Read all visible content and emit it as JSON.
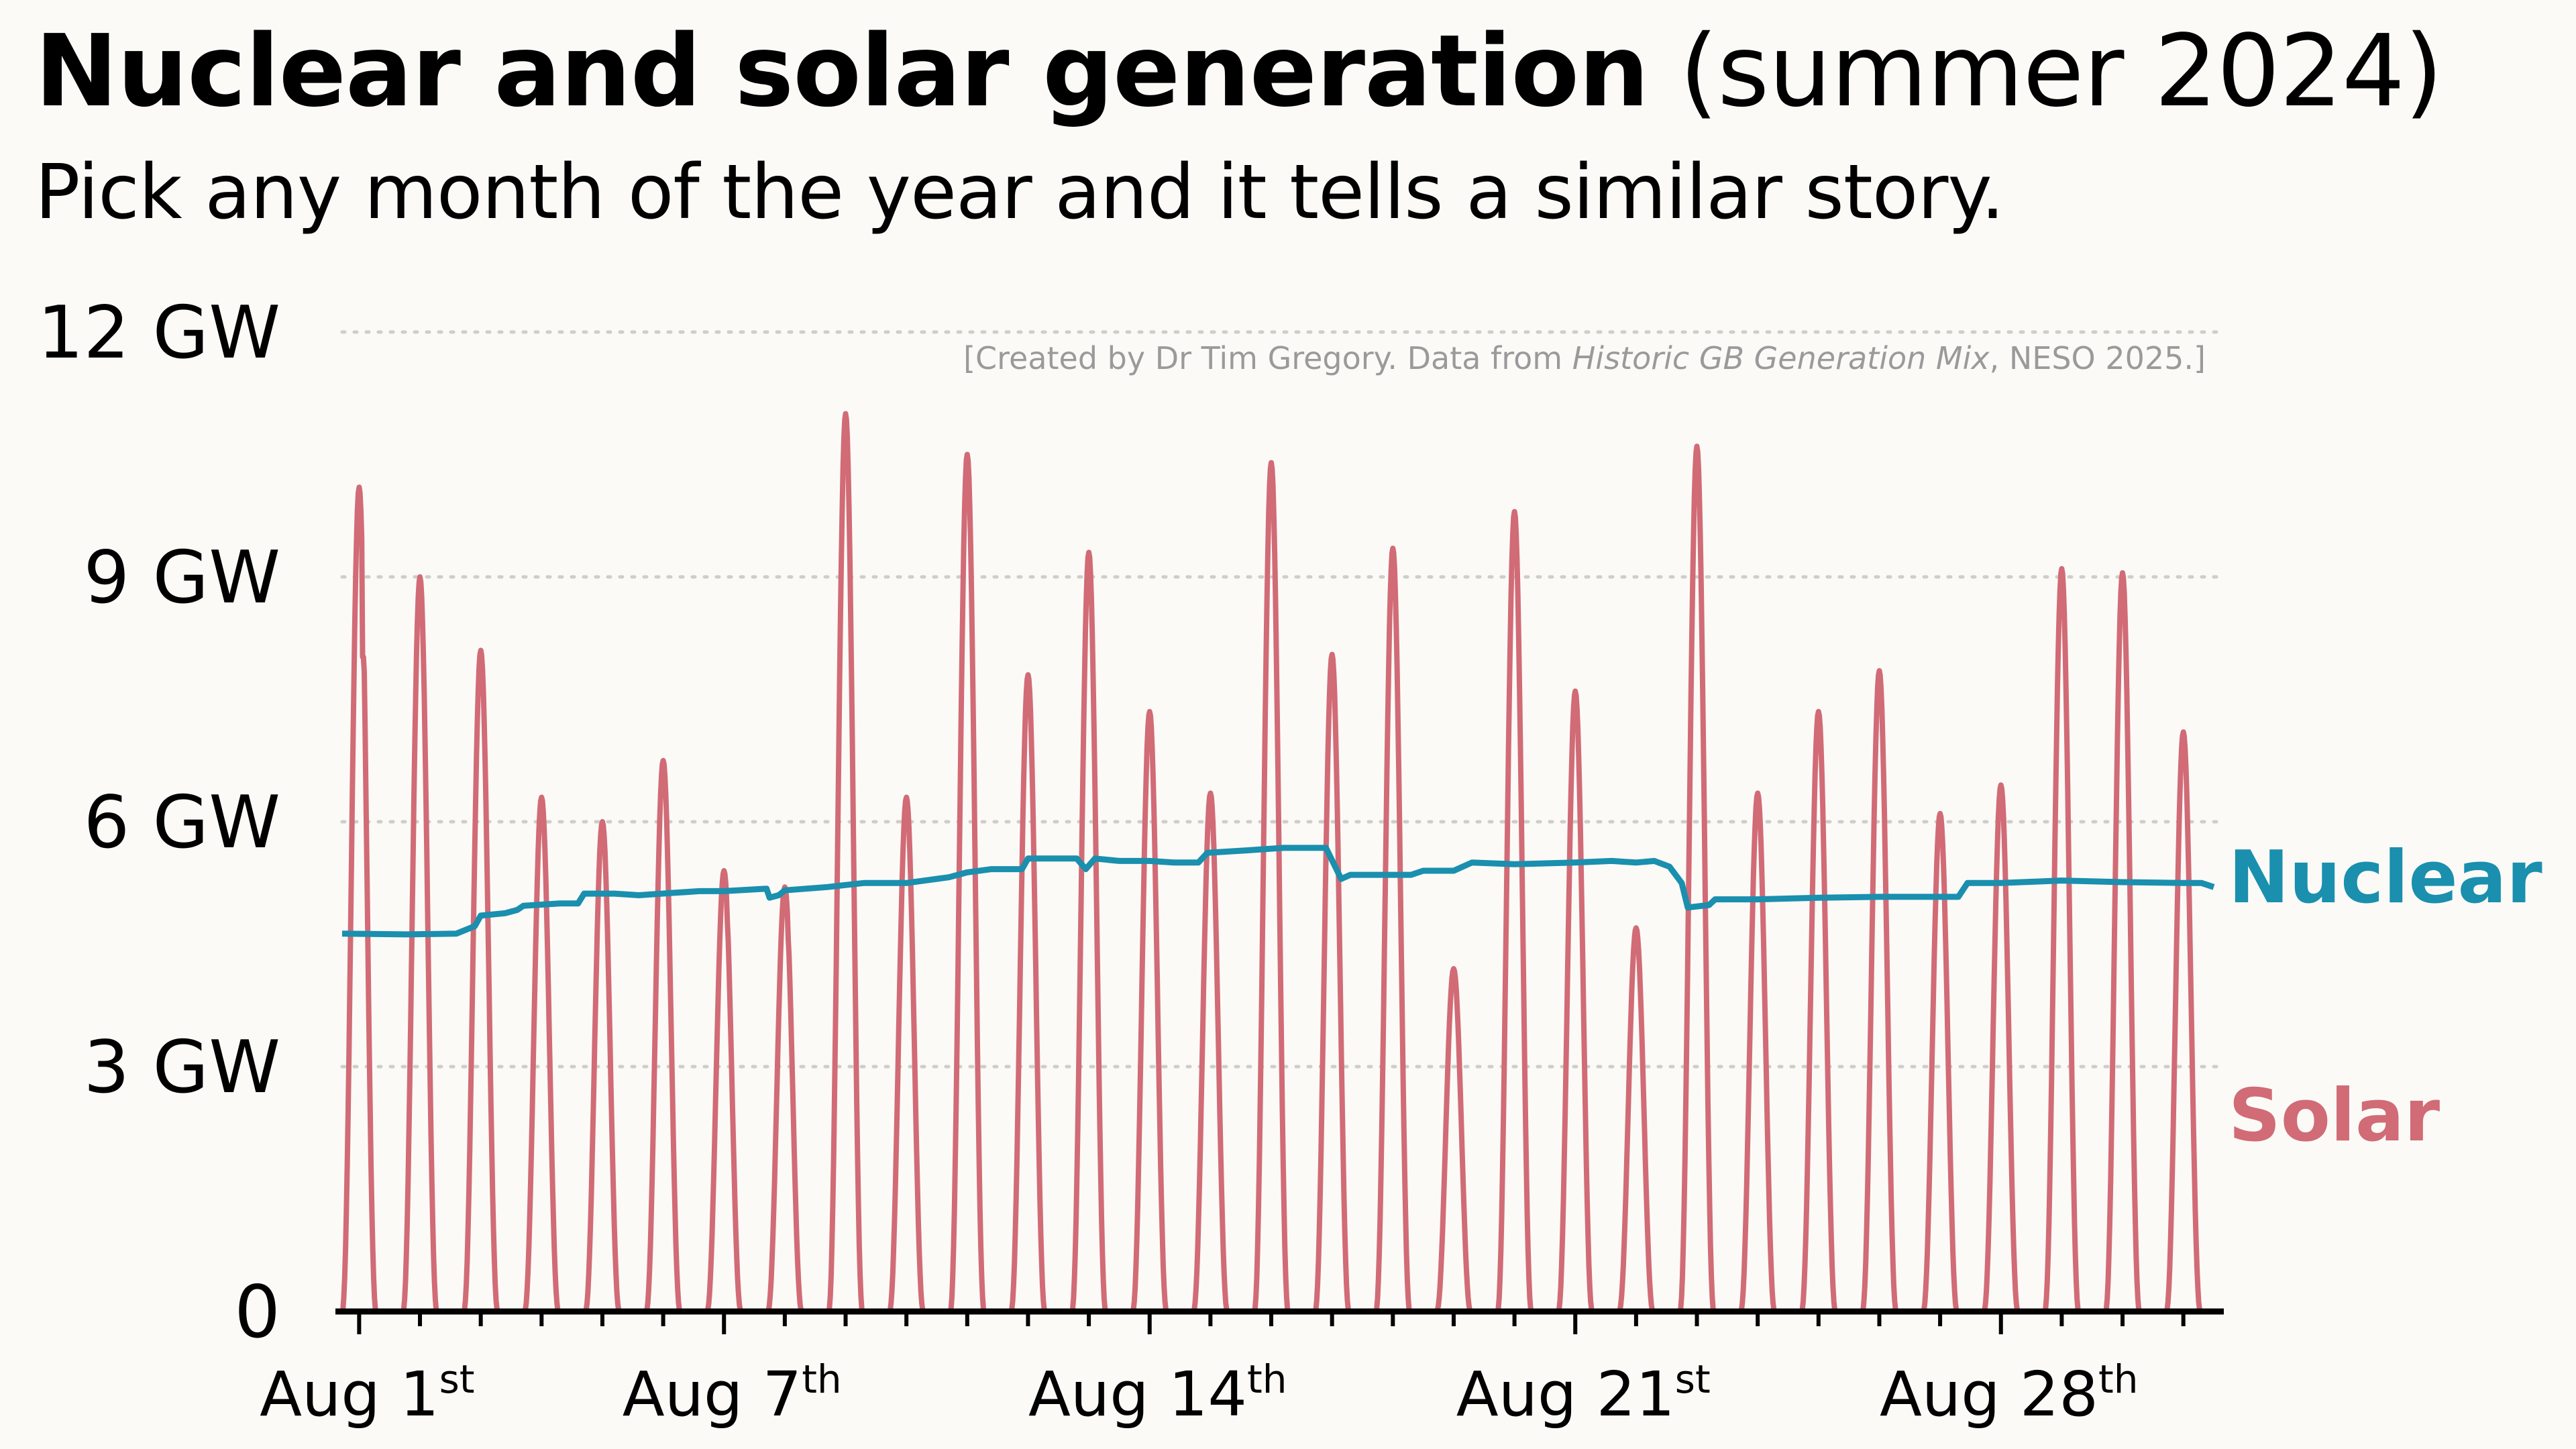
{
  "title": {
    "bold": "Nuclear and solar generation",
    "light": "(summer 2024)"
  },
  "subtitle": "Pick any month of the year and it tells a similar story.",
  "credit": {
    "prefix": "[Created by Dr Tim Gregory. Data from ",
    "source": "Historic GB Generation Mix",
    "suffix": ", NESO 2025.]"
  },
  "colors": {
    "nuclear": "#1a8fae",
    "solar": "#d16b76",
    "grid": "#cfcdc8",
    "axis": "#000000"
  },
  "chart_data": {
    "type": "line",
    "ylim": [
      0,
      12
    ],
    "xlim": [
      0.72,
      31.5
    ],
    "grid": "dotted horizontal",
    "yticks": [
      {
        "value": 0,
        "label": "0"
      },
      {
        "value": 3,
        "label": "3 GW"
      },
      {
        "value": 6,
        "label": "6 GW"
      },
      {
        "value": 9,
        "label": "9 GW"
      },
      {
        "value": 12,
        "label": "12 GW"
      }
    ],
    "xticks": [
      {
        "value": 1,
        "label": "Aug 1",
        "sup": "st"
      },
      {
        "value": 7,
        "label": "Aug 7",
        "sup": "th"
      },
      {
        "value": 14,
        "label": "Aug 14",
        "sup": "th"
      },
      {
        "value": 21,
        "label": "Aug 21",
        "sup": "st"
      },
      {
        "value": 28,
        "label": "Aug 28",
        "sup": "th"
      }
    ],
    "series": [
      {
        "name": "Nuclear",
        "color": "#1a8fae",
        "points": [
          [
            0.72,
            4.63
          ],
          [
            1.8,
            4.62
          ],
          [
            2.6,
            4.63
          ],
          [
            2.9,
            4.72
          ],
          [
            3.0,
            4.85
          ],
          [
            3.4,
            4.88
          ],
          [
            3.6,
            4.92
          ],
          [
            3.7,
            4.97
          ],
          [
            4.3,
            5.0
          ],
          [
            4.6,
            5.0
          ],
          [
            4.7,
            5.12
          ],
          [
            5.2,
            5.12
          ],
          [
            5.6,
            5.1
          ],
          [
            6.2,
            5.13
          ],
          [
            6.6,
            5.15
          ],
          [
            7.0,
            5.15
          ],
          [
            7.7,
            5.18
          ],
          [
            7.75,
            5.07
          ],
          [
            7.9,
            5.1
          ],
          [
            8.0,
            5.16
          ],
          [
            8.7,
            5.2
          ],
          [
            9.3,
            5.25
          ],
          [
            10.0,
            5.25
          ],
          [
            10.7,
            5.32
          ],
          [
            11.0,
            5.38
          ],
          [
            11.4,
            5.42
          ],
          [
            11.9,
            5.42
          ],
          [
            12.0,
            5.55
          ],
          [
            12.8,
            5.55
          ],
          [
            12.95,
            5.42
          ],
          [
            13.1,
            5.55
          ],
          [
            13.5,
            5.52
          ],
          [
            14.0,
            5.52
          ],
          [
            14.4,
            5.5
          ],
          [
            14.8,
            5.5
          ],
          [
            14.95,
            5.62
          ],
          [
            15.6,
            5.65
          ],
          [
            16.2,
            5.68
          ],
          [
            16.9,
            5.68
          ],
          [
            17.15,
            5.3
          ],
          [
            17.3,
            5.35
          ],
          [
            18.3,
            5.35
          ],
          [
            18.5,
            5.4
          ],
          [
            19.0,
            5.4
          ],
          [
            19.3,
            5.5
          ],
          [
            20.0,
            5.48
          ],
          [
            21.0,
            5.5
          ],
          [
            21.6,
            5.52
          ],
          [
            22.0,
            5.5
          ],
          [
            22.3,
            5.52
          ],
          [
            22.55,
            5.45
          ],
          [
            22.75,
            5.25
          ],
          [
            22.85,
            4.95
          ],
          [
            23.2,
            4.98
          ],
          [
            23.3,
            5.05
          ],
          [
            24.0,
            5.05
          ],
          [
            25.0,
            5.07
          ],
          [
            26.0,
            5.08
          ],
          [
            27.3,
            5.08
          ],
          [
            27.45,
            5.25
          ],
          [
            28.0,
            5.25
          ],
          [
            29.0,
            5.28
          ],
          [
            30.0,
            5.26
          ],
          [
            31.0,
            5.25
          ],
          [
            31.3,
            5.25
          ],
          [
            31.5,
            5.2
          ]
        ]
      },
      {
        "name": "Solar",
        "color": "#d16b76",
        "daily_peaks": [
          {
            "day": 1,
            "peak": 10.1,
            "second": 7.5
          },
          {
            "day": 2,
            "peak": 9.0,
            "second": 8.6
          },
          {
            "day": 3,
            "peak": 8.1,
            "second": 7.1
          },
          {
            "day": 4,
            "peak": 6.3,
            "second": 6.0
          },
          {
            "day": 5,
            "peak": 6.0,
            "second": 5.4
          },
          {
            "day": 6,
            "peak": 6.75,
            "second": 6.5
          },
          {
            "day": 7,
            "peak": 5.4,
            "second": 4.6
          },
          {
            "day": 8,
            "peak": 5.2,
            "second": 4.4
          },
          {
            "day": 9,
            "peak": 11.0,
            "second": 10.5
          },
          {
            "day": 10,
            "peak": 6.3,
            "second": 5.9
          },
          {
            "day": 11,
            "peak": 10.5,
            "second": 10.0
          },
          {
            "day": 12,
            "peak": 7.8,
            "second": 7.4
          },
          {
            "day": 13,
            "peak": 9.3,
            "second": 8.6
          },
          {
            "day": 14,
            "peak": 7.35,
            "second": 6.9
          },
          {
            "day": 15,
            "peak": 6.35,
            "second": 5.8
          },
          {
            "day": 16,
            "peak": 10.4,
            "second": 9.7
          },
          {
            "day": 17,
            "peak": 8.05,
            "second": 7.6
          },
          {
            "day": 18,
            "peak": 9.35,
            "second": 8.8
          },
          {
            "day": 19,
            "peak": 4.2,
            "second": 4.0
          },
          {
            "day": 20,
            "peak": 9.8,
            "second": 9.3
          },
          {
            "day": 21,
            "peak": 7.6,
            "second": 6.9
          },
          {
            "day": 22,
            "peak": 4.7,
            "second": 4.3
          },
          {
            "day": 23,
            "peak": 10.6,
            "second": 10.2
          },
          {
            "day": 24,
            "peak": 6.35,
            "second": 5.9
          },
          {
            "day": 25,
            "peak": 7.35,
            "second": 6.8
          },
          {
            "day": 26,
            "peak": 7.85,
            "second": 7.3
          },
          {
            "day": 27,
            "peak": 6.1,
            "second": 5.7
          },
          {
            "day": 28,
            "peak": 6.45,
            "second": 6.0
          },
          {
            "day": 29,
            "peak": 9.1,
            "second": 8.6
          },
          {
            "day": 30,
            "peak": 9.05,
            "second": 8.4
          },
          {
            "day": 31,
            "peak": 7.1,
            "second": 6.7
          }
        ]
      }
    ]
  }
}
